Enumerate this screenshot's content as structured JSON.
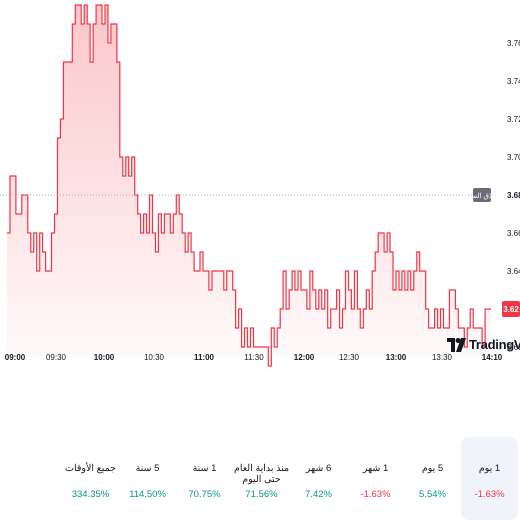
{
  "chart_data": {
    "type": "area",
    "x_labels": [
      "09:00",
      "09:30",
      "10:00",
      "10:30",
      "11:00",
      "11:30",
      "12:00",
      "12:30",
      "13:00",
      "13:30",
      "14:10"
    ],
    "y_ticks": [
      "3.76",
      "3.74",
      "3.72",
      "3.70",
      "3.68",
      "3.66",
      "3.64",
      "3.62",
      "3.60"
    ],
    "ylim": [
      3.595,
      3.775
    ],
    "previous_close": {
      "label": "الإغلاق السابق",
      "value": "3.68"
    },
    "last_price": "3.62",
    "line_color": "#f23645",
    "series": [
      {
        "values": [
          3.66,
          3.69,
          3.69,
          3.67,
          3.67,
          3.68,
          3.68,
          3.66,
          3.65,
          3.66,
          3.64,
          3.66,
          3.65,
          3.64,
          3.64,
          3.66,
          3.67,
          3.71,
          3.72,
          3.75,
          3.75,
          3.75,
          3.77,
          3.78,
          3.78,
          3.77,
          3.78,
          3.77,
          3.75,
          3.77,
          3.78,
          3.78,
          3.77,
          3.78,
          3.76,
          3.77,
          3.77,
          3.75,
          3.7,
          3.69,
          3.7,
          3.69,
          3.7,
          3.68,
          3.67,
          3.66,
          3.67,
          3.66,
          3.68,
          3.66,
          3.65,
          3.67,
          3.66,
          3.67,
          3.67,
          3.66,
          3.67,
          3.68,
          3.67,
          3.66,
          3.65,
          3.66,
          3.65,
          3.64,
          3.64,
          3.65,
          3.64,
          3.64,
          3.63,
          3.64,
          3.64,
          3.64,
          3.64,
          3.63,
          3.64,
          3.64,
          3.63,
          3.61,
          3.62,
          3.6,
          3.61,
          3.6,
          3.61,
          3.6,
          3.6,
          3.6,
          3.6,
          3.6,
          3.59,
          3.61,
          3.6,
          3.61,
          3.62,
          3.64,
          3.62,
          3.63,
          3.64,
          3.63,
          3.64,
          3.63,
          3.63,
          3.62,
          3.64,
          3.63,
          3.62,
          3.63,
          3.62,
          3.63,
          3.61,
          3.62,
          3.62,
          3.63,
          3.61,
          3.62,
          3.64,
          3.63,
          3.62,
          3.64,
          3.62,
          3.61,
          3.62,
          3.63,
          3.62,
          3.64,
          3.65,
          3.66,
          3.66,
          3.65,
          3.66,
          3.65,
          3.63,
          3.64,
          3.63,
          3.64,
          3.63,
          3.64,
          3.63,
          3.64,
          3.65,
          3.64,
          3.64,
          3.62,
          3.61,
          3.61,
          3.62,
          3.61,
          3.62,
          3.61,
          3.61,
          3.63,
          3.63,
          3.62,
          3.61,
          3.61,
          3.6,
          3.61,
          3.62,
          3.61,
          3.61,
          3.61,
          3.6,
          3.62,
          3.62,
          3.62
        ]
      }
    ],
    "watermark": "TradingView",
    "grid": true
  },
  "performance": [
    {
      "label": "1 يوم",
      "value": "-1.63%",
      "color": "#f23645",
      "active": true
    },
    {
      "label": "5 يوم",
      "value": "5.54%",
      "color": "#089981",
      "active": false
    },
    {
      "label": "1 شهر",
      "value": "-1.63%",
      "color": "#f23645",
      "active": false
    },
    {
      "label": "6 شهر",
      "value": "7.42%",
      "color": "#089981",
      "active": false
    },
    {
      "label": "منذ بداية العام حتى اليوم",
      "value": "71.56%",
      "color": "#089981",
      "active": false
    },
    {
      "label": "1 سنة",
      "value": "70.75%",
      "color": "#089981",
      "active": false
    },
    {
      "label": "5 سنة",
      "value": "114.50%",
      "color": "#089981",
      "active": false
    },
    {
      "label": "جميع الأوقات",
      "value": "334.35%",
      "color": "#089981",
      "active": false
    }
  ]
}
